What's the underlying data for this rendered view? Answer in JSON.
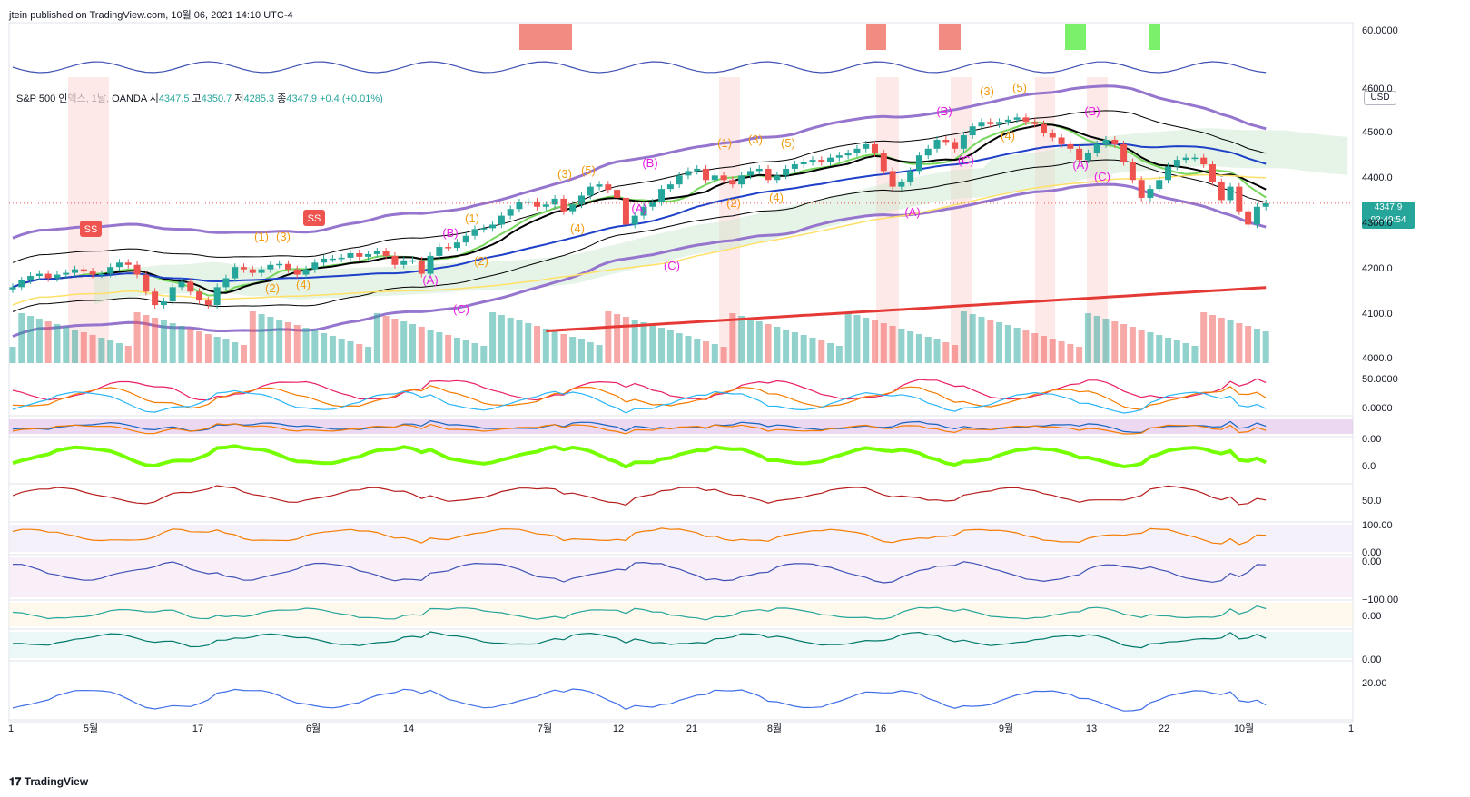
{
  "header": {
    "publisher": "jtein published on TradingView.com, 10월 06, 2021 14:10 UTC-4"
  },
  "legend": {
    "symbol": "S&P 500 인덱스, 1날, OANDA",
    "o_label": "시",
    "o_value": "4347.5",
    "h_label": "고",
    "h_value": "4350.7",
    "l_label": "저",
    "l_value": "4285.3",
    "c_label": "종",
    "c_value": "4347.9",
    "change": "+0.4 (+0.01%)"
  },
  "price_badge": {
    "price": "4347.9",
    "countdown": "02:49:54"
  },
  "currency": "USD",
  "footer": {
    "brand": "TradingView"
  },
  "colors": {
    "up": "#26a69a",
    "down": "#ef5350",
    "bb": "#9575cd",
    "ema_fast": "#76d65b",
    "ema_slow": "#1e40c8",
    "sma200": "#e53935",
    "cloud": "#c8e6c9",
    "wave_orange": "#f39c12",
    "wave_magenta": "#e91ee2"
  },
  "chart_data": {
    "type": "candlestick",
    "main_y_ticks": [
      "60.0000",
      "4600.0",
      "4500.0",
      "4400.0",
      "4300.0",
      "4200.0",
      "4100.0",
      "4000.0"
    ],
    "sub_y_ticks": [
      "50.0000",
      "0.0000",
      "0.00",
      "0.0",
      "50.0",
      "100.00",
      "0.00",
      "0.00",
      "−100.00",
      "0.00",
      "0.00",
      "20.00"
    ],
    "x_ticks": [
      "1",
      "5월",
      "17",
      "6월",
      "14",
      "7월",
      "12",
      "21",
      "8월",
      "16",
      "9월",
      "13",
      "22",
      "10월",
      "1"
    ],
    "last_price": 4347.9,
    "ohlc_last": {
      "open": 4347.5,
      "high": 4350.7,
      "low": 4285.3,
      "close": 4347.9
    },
    "closes": [
      4160,
      4175,
      4185,
      4190,
      4180,
      4188,
      4192,
      4200,
      4195,
      4188,
      4190,
      4205,
      4215,
      4210,
      4188,
      4150,
      4120,
      4128,
      4160,
      4172,
      4150,
      4130,
      4120,
      4160,
      4180,
      4205,
      4200,
      4192,
      4200,
      4210,
      4212,
      4200,
      4188,
      4200,
      4215,
      4224,
      4224,
      4226,
      4236,
      4228,
      4234,
      4240,
      4230,
      4210,
      4220,
      4220,
      4190,
      4230,
      4250,
      4248,
      4260,
      4275,
      4290,
      4292,
      4300,
      4320,
      4335,
      4350,
      4352,
      4340,
      4345,
      4358,
      4330,
      4345,
      4365,
      4385,
      4390,
      4378,
      4360,
      4300,
      4320,
      4340,
      4350,
      4380,
      4390,
      4410,
      4420,
      4425,
      4400,
      4410,
      4400,
      4390,
      4410,
      4420,
      4425,
      4400,
      4410,
      4425,
      4435,
      4440,
      4445,
      4440,
      4450,
      4455,
      4460,
      4470,
      4480,
      4460,
      4420,
      4385,
      4395,
      4420,
      4455,
      4470,
      4490,
      4485,
      4470,
      4500,
      4520,
      4530,
      4525,
      4530,
      4535,
      4540,
      4530,
      4525,
      4505,
      4495,
      4480,
      4470,
      4445,
      4460,
      4480,
      4490,
      4480,
      4440,
      4400,
      4360,
      4380,
      4400,
      4430,
      4445,
      4450,
      4450,
      4435,
      4395,
      4355,
      4385,
      4330,
      4300,
      4340,
      4347.9
    ],
    "annotations": [
      "SS",
      "SS",
      "(1)",
      "(2)",
      "(3)",
      "(4)",
      "(5)",
      "(A)",
      "(B)",
      "(C)"
    ]
  }
}
